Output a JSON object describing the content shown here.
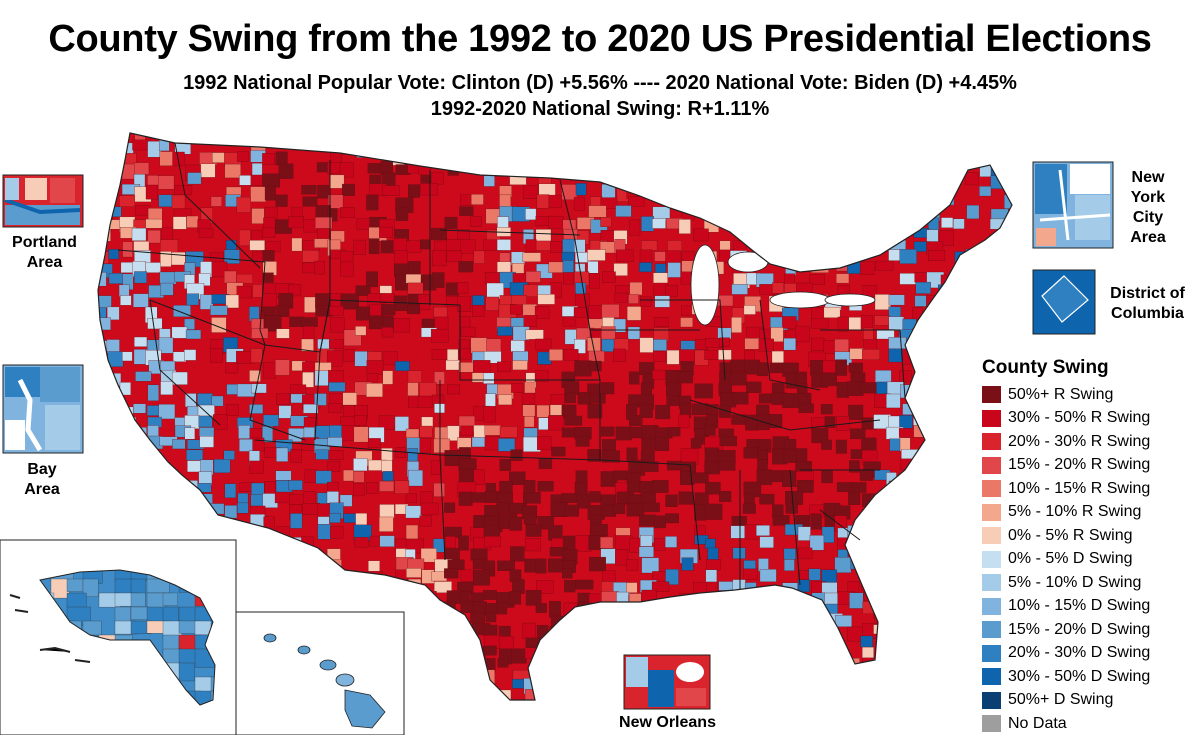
{
  "title": "County Swing from the 1992 to 2020 US Presidential Elections",
  "subtitle_1": "1992 National Popular Vote: Clinton (D) +5.56% ---- 2020 National Vote: Biden (D) +4.45%",
  "subtitle_2": "1992-2020 National Swing: R+1.11%",
  "insets": {
    "portland": "Portland Area",
    "bay": "Bay Area",
    "nyc": "New York City Area",
    "dc": "District of Columbia",
    "new_orleans": "New Orleans"
  },
  "legend": {
    "title": "County Swing",
    "items": [
      {
        "label": "50%+ R Swing",
        "color": "#7b0f17"
      },
      {
        "label": "30% - 50% R Swing",
        "color": "#c8051a"
      },
      {
        "label": "20% - 30% R Swing",
        "color": "#d9232d"
      },
      {
        "label": "15% - 20% R Swing",
        "color": "#e0464a"
      },
      {
        "label": "10% - 15% R Swing",
        "color": "#eb7867"
      },
      {
        "label": "5% - 10% R Swing",
        "color": "#f3a78d"
      },
      {
        "label": "0% - 5% R Swing",
        "color": "#f8cdb7"
      },
      {
        "label": "0% - 5% D Swing",
        "color": "#c5dff0"
      },
      {
        "label": "5% - 10% D Swing",
        "color": "#a4cbe8"
      },
      {
        "label": "10% - 15% D Swing",
        "color": "#80b4de"
      },
      {
        "label": "15% - 20% D Swing",
        "color": "#5b9ccf"
      },
      {
        "label": "20% - 30% D Swing",
        "color": "#2e80c0"
      },
      {
        "label": "30% - 50% D Swing",
        "color": "#0e64ad"
      },
      {
        "label": "50%+ D Swing",
        "color": "#0a3f73"
      },
      {
        "label": "No Data",
        "color": "#9e9e9e"
      }
    ]
  }
}
